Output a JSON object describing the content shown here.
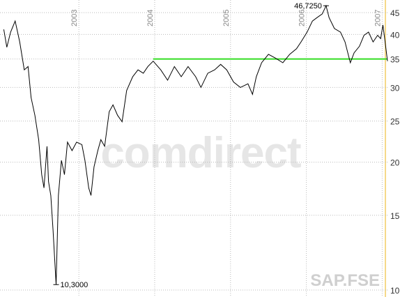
{
  "chart_data": {
    "type": "line",
    "symbol": "SAP.FSE",
    "watermark": "comdirect",
    "log_scale": true,
    "grid": true,
    "x": [
      2002.01,
      2002.05,
      2002.1,
      2002.16,
      2002.22,
      2002.28,
      2002.33,
      2002.37,
      2002.42,
      2002.47,
      2002.51,
      2002.54,
      2002.58,
      2002.6,
      2002.63,
      2002.66,
      2002.7,
      2002.73,
      2002.77,
      2002.81,
      2002.85,
      2002.91,
      2002.97,
      2003.04,
      2003.08,
      2003.13,
      2003.16,
      2003.2,
      2003.25,
      2003.29,
      2003.34,
      2003.4,
      2003.45,
      2003.51,
      2003.57,
      2003.63,
      2003.71,
      2003.78,
      2003.85,
      2003.91,
      2003.98,
      2004.08,
      2004.17,
      2004.26,
      2004.35,
      2004.44,
      2004.54,
      2004.61,
      2004.7,
      2004.79,
      2004.87,
      2004.95,
      2005.04,
      2005.13,
      2005.23,
      2005.29,
      2005.34,
      2005.41,
      2005.5,
      2005.59,
      2005.69,
      2005.78,
      2005.87,
      2005.93,
      2006.01,
      2006.08,
      2006.14,
      2006.21,
      2006.26,
      2006.3,
      2006.37,
      2006.45,
      2006.51,
      2006.58,
      2006.63,
      2006.7,
      2006.76,
      2006.82,
      2006.88,
      2006.94,
      2006.98,
      2007.01,
      2007.05,
      2007.07
    ],
    "series": [
      {
        "color": "#000000",
        "values": [
          41.1,
          37.3,
          40.5,
          43.0,
          38.4,
          33.0,
          33.6,
          28.4,
          25.8,
          22.6,
          18.7,
          17.4,
          21.8,
          18.0,
          16.7,
          13.8,
          10.3,
          16.7,
          20.2,
          18.7,
          22.3,
          21.3,
          22.3,
          22.0,
          20.2,
          17.4,
          16.7,
          19.5,
          21.3,
          22.6,
          21.8,
          26.3,
          27.3,
          25.8,
          24.9,
          29.5,
          31.8,
          33.0,
          32.4,
          33.6,
          34.6,
          33.0,
          31.2,
          33.6,
          31.8,
          33.6,
          31.8,
          30.0,
          32.4,
          33.0,
          34.0,
          33.0,
          30.9,
          30.0,
          30.6,
          28.9,
          31.8,
          34.3,
          35.9,
          35.2,
          34.3,
          35.9,
          37.0,
          38.4,
          40.5,
          43.0,
          43.8,
          44.7,
          46.725,
          43.8,
          41.3,
          40.5,
          38.4,
          34.3,
          36.2,
          37.5,
          39.8,
          40.5,
          38.4,
          39.8,
          39.1,
          42.1,
          37.0,
          34.6
        ]
      }
    ],
    "hline": {
      "value": 35,
      "x_start": 2003.98,
      "color": "#33dd22"
    },
    "annotations": [
      {
        "x": 2006.26,
        "value": 46.725,
        "label": "46,7250"
      },
      {
        "x": 2002.7,
        "value": 10.3,
        "label": "10,3000"
      }
    ],
    "xlim": [
      2001.96,
      2007.07
    ],
    "xticks": [
      2003,
      2004,
      2005,
      2006,
      2007
    ],
    "ylim": [
      9.63,
      48.2
    ],
    "yticks": [
      10,
      15,
      20,
      25,
      30,
      35,
      40,
      45
    ]
  }
}
